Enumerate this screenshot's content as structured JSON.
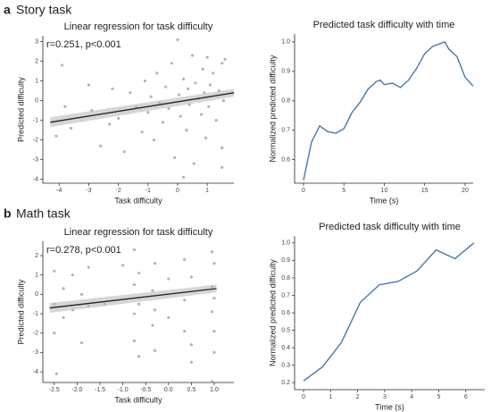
{
  "panels": [
    {
      "letter": "a",
      "title": "Story task"
    },
    {
      "letter": "b",
      "title": "Math task"
    }
  ],
  "chart_data": [
    {
      "type": "scatter",
      "title": "Linear regression for task difficulty",
      "xlabel": "Task difficulty",
      "ylabel": "Predicted difficulty",
      "annotation": "r=0.251, p<0.001",
      "color": "#5b8bb5",
      "line_color": "#222222",
      "band_color": "#bbbbbb",
      "x": [
        -4.1,
        -3.9,
        -3.8,
        -3.6,
        -3.0,
        -2.9,
        -2.6,
        -2.3,
        -2.2,
        -2.0,
        -1.8,
        -1.6,
        -1.4,
        -1.2,
        -1.1,
        -1.0,
        -0.9,
        -0.8,
        -0.7,
        -0.6,
        -0.5,
        -0.4,
        -0.3,
        -0.2,
        -0.1,
        0.0,
        0.05,
        0.1,
        0.2,
        0.3,
        0.35,
        0.4,
        0.5,
        0.55,
        0.6,
        0.7,
        0.8,
        0.85,
        0.9,
        0.95,
        1.0,
        1.05,
        1.1,
        1.2,
        1.3,
        1.4,
        1.5,
        1.5,
        1.55,
        1.6,
        0.2,
        1.5
      ],
      "values": [
        -1.8,
        1.8,
        -0.3,
        -1.4,
        0.8,
        -0.5,
        -2.3,
        -1.2,
        0.6,
        -0.9,
        -2.6,
        0.4,
        -0.3,
        -1.6,
        1.0,
        -0.6,
        0.2,
        -2.0,
        1.4,
        -0.1,
        -1.1,
        0.7,
        -0.4,
        1.9,
        -2.9,
        3.1,
        0.3,
        -0.8,
        1.1,
        -1.5,
        0.6,
        -0.2,
        2.3,
        -3.2,
        0.9,
        0.1,
        -0.7,
        1.6,
        0.4,
        -1.9,
        2.2,
        -0.3,
        0.8,
        1.4,
        -1.0,
        0.5,
        1.9,
        -2.4,
        0.0,
        2.1,
        -3.9,
        -3.4
      ],
      "fit": {
        "x": [
          -4.3,
          1.9
        ],
        "values": [
          -1.1,
          0.4
        ],
        "band_lower": [
          -1.35,
          0.2
        ],
        "band_upper": [
          -0.85,
          0.6
        ]
      },
      "xlim": [
        -4.55,
        1.9
      ],
      "ylim": [
        -4.2,
        3.3
      ],
      "xticks": [
        -4,
        -3,
        -2,
        -1,
        0,
        1
      ],
      "yticks": [
        3,
        2,
        1,
        0,
        -1,
        -2,
        -3,
        -4
      ]
    },
    {
      "type": "line",
      "title": "Predicted task difficulty with time",
      "xlabel": "Time (s)",
      "ylabel": "Normalized predicted difficulty",
      "color": "#4a78a8",
      "x": [
        0,
        1,
        2,
        3,
        4,
        5,
        6,
        7,
        8,
        9,
        9.5,
        10,
        11,
        12,
        13,
        14,
        15,
        16,
        17,
        17.5,
        18,
        19,
        20,
        21
      ],
      "values": [
        0.53,
        0.66,
        0.715,
        0.695,
        0.69,
        0.705,
        0.76,
        0.795,
        0.84,
        0.865,
        0.87,
        0.855,
        0.86,
        0.845,
        0.87,
        0.91,
        0.96,
        0.985,
        0.995,
        1.0,
        0.975,
        0.95,
        0.88,
        0.85
      ],
      "xlim": [
        -1.1,
        21
      ],
      "ylim": [
        0.52,
        1.027
      ],
      "xticks": [
        0,
        5,
        10,
        15,
        20
      ],
      "yticks": [
        0.6,
        0.7,
        0.8,
        0.9,
        {
          "value": 1,
          "label": "1.0"
        }
      ]
    },
    {
      "type": "scatter",
      "title": "Linear regression for task difficulty",
      "xlabel": "Task difficulty",
      "ylabel": "Predicted difficulty",
      "annotation": "r=0.278, p<0.001",
      "color": "#5b8bb5",
      "line_color": "#222222",
      "band_color": "#bbbbbb",
      "x": [
        -2.5,
        -2.5,
        -2.5,
        -2.45,
        -2.3,
        -2.3,
        -2.1,
        -2.1,
        -1.9,
        -1.9,
        -1.75,
        -1.75,
        -0.75,
        -0.75,
        -0.75,
        -0.75,
        -0.65,
        -0.65,
        -0.65,
        -0.35,
        -0.35,
        -0.3,
        -0.3,
        -0.3,
        0.0,
        0.0,
        0.35,
        0.35,
        0.35,
        0.5,
        0.5,
        0.5,
        0.95,
        0.95,
        0.95,
        0.95,
        1.0,
        1.0,
        1.0,
        1.0,
        -1.0,
        -1.4
      ],
      "values": [
        1.2,
        -0.5,
        -2.0,
        -4.1,
        0.3,
        -1.2,
        1.0,
        -0.8,
        0.0,
        -2.5,
        -0.6,
        1.4,
        2.3,
        0.5,
        -1.0,
        -2.4,
        1.1,
        -0.5,
        -3.2,
        0.2,
        -1.6,
        1.6,
        -0.8,
        -2.9,
        0.8,
        -1.2,
        1.8,
        -0.3,
        -1.9,
        0.9,
        -2.6,
        -3.5,
        2.2,
        0.4,
        -0.9,
        -4.5,
        1.6,
        -0.2,
        -1.9,
        -3.0,
        1.5,
        -0.5
      ],
      "fit": {
        "x": [
          -2.6,
          1.05
        ],
        "values": [
          -0.7,
          0.3
        ],
        "band_lower": [
          -0.95,
          0.1
        ],
        "band_upper": [
          -0.45,
          0.5
        ]
      },
      "xlim": [
        -2.75,
        1.43
      ],
      "ylim": [
        -4.55,
        2.74
      ],
      "xticks": [
        -2.5,
        {
          "value": -2,
          "label": "-2.0"
        },
        -1.5,
        {
          "value": -1,
          "label": "-1.0"
        },
        -0.5,
        {
          "value": 0,
          "label": "0.0"
        },
        0.5,
        {
          "value": 1,
          "label": "1.0"
        }
      ],
      "yticks": [
        2,
        1,
        0,
        -1,
        -2,
        -3,
        -4
      ]
    },
    {
      "type": "line",
      "title": "Predicted task difficulty with time",
      "xlabel": "Time (s)",
      "ylabel": "Normalized predicted difficulty",
      "color": "#4a78a8",
      "x": [
        0,
        0.7,
        1.4,
        2.1,
        2.8,
        3.5,
        4.2,
        4.9,
        5.6,
        6.3
      ],
      "values": [
        0.21,
        0.29,
        0.43,
        0.66,
        0.76,
        0.78,
        0.84,
        0.96,
        0.91,
        1.0
      ],
      "xlim": [
        -0.33,
        6.7
      ],
      "ylim": [
        0.16,
        1.04
      ],
      "xticks": [
        0,
        1,
        2,
        3,
        4,
        5,
        6
      ],
      "yticks": [
        0.2,
        0.3,
        0.4,
        0.5,
        0.6,
        0.7,
        0.8,
        0.9,
        {
          "value": 1,
          "label": "1.0"
        }
      ]
    }
  ]
}
